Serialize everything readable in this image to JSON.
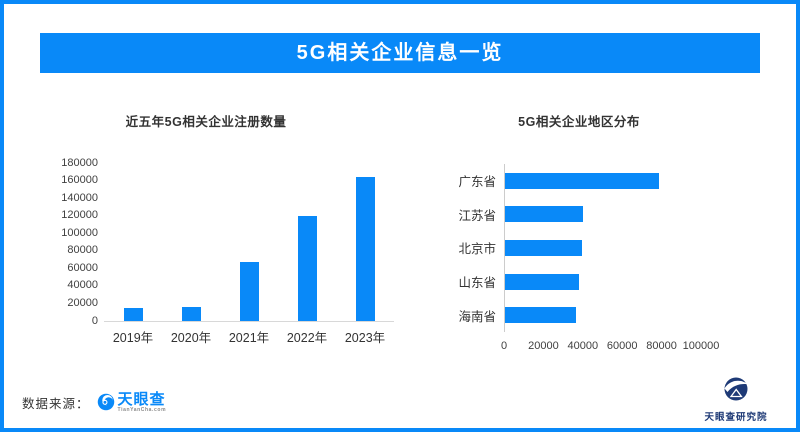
{
  "theme": {
    "accent_blue": "#0989f8",
    "navy": "#1e3a76",
    "text_dark": "#333333",
    "axis_line_gray": "#d8d8d8"
  },
  "header": {
    "title": "5G相关企业信息一览"
  },
  "chart_data": [
    {
      "type": "bar",
      "orientation": "vertical",
      "title": "近五年5G相关企业注册数量",
      "categories": [
        "2019年",
        "2020年",
        "2021年",
        "2022年",
        "2023年"
      ],
      "values": [
        15000,
        16500,
        67500,
        120000,
        164000
      ],
      "xlabel": "",
      "ylabel": "",
      "ylim": [
        0,
        180000
      ],
      "ytick_step": 20000,
      "grid": "off",
      "legend": "none",
      "bar_color": "#0989f8"
    },
    {
      "type": "bar",
      "orientation": "horizontal",
      "title": "5G相关企业地区分布",
      "categories": [
        "广东省",
        "江苏省",
        "北京市",
        "山东省",
        "海南省"
      ],
      "values": [
        78000,
        39500,
        39200,
        37300,
        35900
      ],
      "xlabel": "",
      "ylabel": "",
      "xlim": [
        0,
        120000
      ],
      "xticks": [
        0,
        20000,
        40000,
        60000,
        80000,
        100000
      ],
      "grid": "off",
      "legend": "none",
      "bar_color": "#0989f8"
    }
  ],
  "footer": {
    "source_label": "数据来源：",
    "tianyancha": {
      "name": "天眼查",
      "domain": "TianYanCha.com"
    },
    "institute": {
      "name": "天眼查研究院"
    }
  }
}
